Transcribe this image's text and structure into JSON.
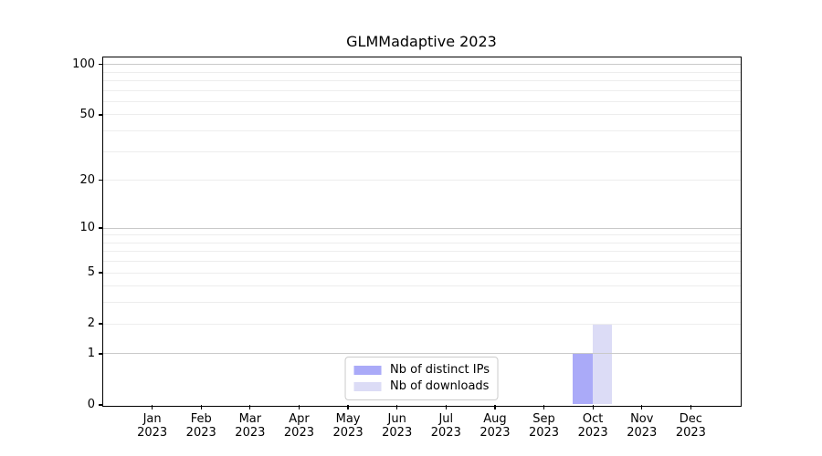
{
  "figure": {
    "background": "#ffffff"
  },
  "chart_data": {
    "type": "bar",
    "title": "GLMMadaptive 2023",
    "xlabel": "",
    "ylabel": "",
    "categories": [
      "Jan",
      "Feb",
      "Mar",
      "Apr",
      "May",
      "Jun",
      "Jul",
      "Aug",
      "Sep",
      "Oct",
      "Nov",
      "Dec"
    ],
    "year_label": "2023",
    "series": [
      {
        "name": "Nb of distinct IPs",
        "color": "#aaaaf8",
        "values": [
          0,
          0,
          0,
          0,
          0,
          0,
          0,
          0,
          0,
          1,
          0,
          0
        ]
      },
      {
        "name": "Nb of downloads",
        "color": "#dcdcf6",
        "values": [
          0,
          0,
          0,
          0,
          0,
          0,
          0,
          0,
          0,
          2,
          0,
          0
        ]
      }
    ],
    "yscale": "log1p",
    "ylim": [
      0,
      110
    ],
    "yticks": [
      0,
      1,
      2,
      5,
      10,
      20,
      50,
      100
    ],
    "major_gridlines": [
      1,
      10,
      100
    ],
    "minor_gridlines": [
      2,
      3,
      4,
      5,
      6,
      7,
      8,
      9,
      20,
      30,
      40,
      50,
      60,
      70,
      80,
      90
    ],
    "grid": {
      "major_color": "#c9c9c9",
      "minor_color": "#ededed"
    },
    "legend": {
      "position": "lower center",
      "border_color": "#cccccc"
    },
    "axis_color": "#000000"
  }
}
